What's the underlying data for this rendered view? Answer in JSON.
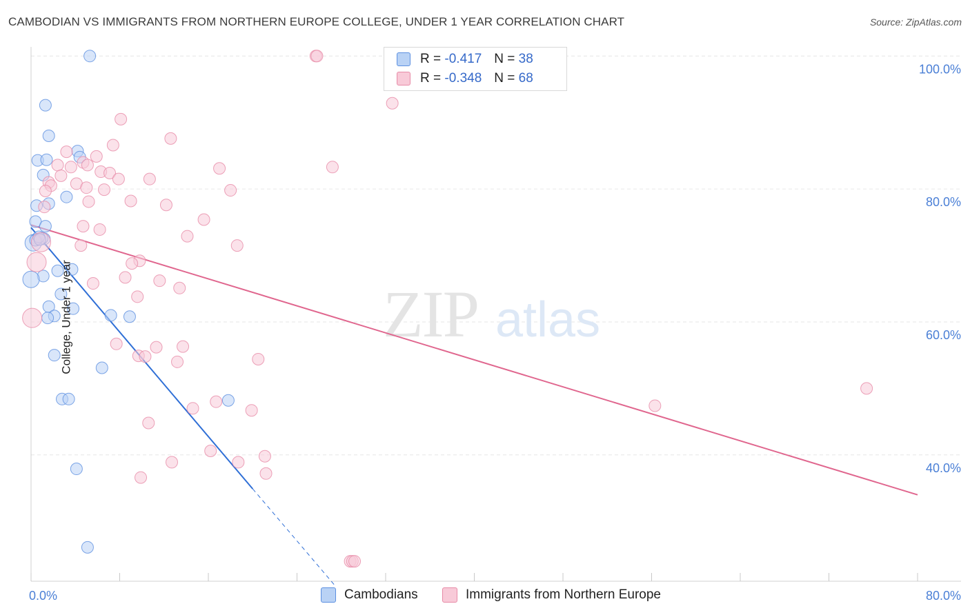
{
  "title": "CAMBODIAN VS IMMIGRANTS FROM NORTHERN EUROPE COLLEGE, UNDER 1 YEAR CORRELATION CHART",
  "source": "Source: ZipAtlas.com",
  "watermark": {
    "zip": "ZIP",
    "atlas": "atlas"
  },
  "colors": {
    "blue": "#5b8fe0",
    "blue_fill": "#b9d2f5",
    "blue_line": "#2f6fd6",
    "pink": "#e78aa6",
    "pink_fill": "#f8cad8",
    "pink_line": "#e0668e",
    "tick": "#4a7fd6",
    "grid": "#e6e6e6"
  },
  "legend": {
    "rows": [
      {
        "r_label": "R =",
        "r_value": "-0.417",
        "n_label": "N =",
        "n_value": "38",
        "series": "blue"
      },
      {
        "r_label": "R =",
        "r_value": "-0.348",
        "n_label": "N =",
        "n_value": "68",
        "series": "pink"
      }
    ]
  },
  "chart_data": {
    "type": "scatter",
    "title": "CAMBODIAN VS IMMIGRANTS FROM NORTHERN EUROPE COLLEGE, UNDER 1 YEAR CORRELATION CHART",
    "xlabel": "",
    "ylabel": "College, Under 1 year",
    "xlim": [
      0,
      80
    ],
    "ylim": [
      21,
      102
    ],
    "x_tick_labels": [
      {
        "value": 0,
        "label": "0.0%"
      },
      {
        "value": 80,
        "label": "80.0%"
      }
    ],
    "y_tick_labels": [
      {
        "value": 100,
        "label": "100.0%"
      },
      {
        "value": 80,
        "label": "80.0%"
      },
      {
        "value": 60,
        "label": "60.0%"
      },
      {
        "value": 40,
        "label": "40.0%"
      }
    ],
    "grid": true,
    "series": [
      {
        "name": "Cambodians",
        "color": "blue",
        "r": -0.417,
        "n": 38,
        "trend": {
          "x": [
            0,
            20
          ],
          "y": [
            74.2,
            34.9
          ],
          "dashed_to": [
            27.5,
            20.2
          ]
        },
        "points": [
          [
            5.3,
            100
          ],
          [
            1.3,
            92.6
          ],
          [
            1.6,
            88
          ],
          [
            0.6,
            84.3
          ],
          [
            1.4,
            84.4
          ],
          [
            4.2,
            85.7
          ],
          [
            4.4,
            84.8
          ],
          [
            1.1,
            82.1
          ],
          [
            3.2,
            78.8
          ],
          [
            0.5,
            77.5
          ],
          [
            1.6,
            77.8
          ],
          [
            0.4,
            75.1
          ],
          [
            1.3,
            74.4
          ],
          [
            0.5,
            72.5
          ],
          [
            1.2,
            72.5
          ],
          [
            1.0,
            72.6
          ],
          [
            0.2,
            71.9
          ],
          [
            3.7,
            67.9
          ],
          [
            1.1,
            66.9
          ],
          [
            2.4,
            67.7
          ],
          [
            0,
            66.4
          ],
          [
            2.7,
            64.2
          ],
          [
            1.6,
            62.3
          ],
          [
            3.8,
            62.0
          ],
          [
            2.1,
            60.9
          ],
          [
            1.5,
            60.6
          ],
          [
            7.2,
            61.0
          ],
          [
            8.9,
            60.8
          ],
          [
            2.1,
            55.0
          ],
          [
            6.4,
            53.1
          ],
          [
            2.8,
            48.4
          ],
          [
            3.4,
            48.4
          ],
          [
            17.8,
            48.2
          ],
          [
            4.1,
            37.9
          ],
          [
            5.1,
            26.1
          ],
          [
            0.4,
            72.3
          ],
          [
            0.7,
            72.8
          ],
          [
            0.8,
            72.4
          ]
        ]
      },
      {
        "name": "Immigrants from Northern Europe",
        "color": "pink",
        "r": -0.348,
        "n": 68,
        "trend": {
          "x": [
            0,
            80
          ],
          "y": [
            74.6,
            34.0
          ]
        },
        "points": [
          [
            25.7,
            100
          ],
          [
            25.8,
            100
          ],
          [
            32.6,
            92.9
          ],
          [
            8.1,
            90.5
          ],
          [
            12.6,
            87.6
          ],
          [
            7.4,
            86.6
          ],
          [
            3.2,
            85.6
          ],
          [
            5.9,
            84.9
          ],
          [
            2.4,
            83.6
          ],
          [
            4.7,
            84.0
          ],
          [
            5.1,
            83.6
          ],
          [
            27.2,
            83.3
          ],
          [
            17.0,
            83.1
          ],
          [
            3.6,
            83.3
          ],
          [
            6.3,
            82.6
          ],
          [
            7.1,
            82.4
          ],
          [
            2.7,
            82.0
          ],
          [
            7.9,
            81.5
          ],
          [
            10.7,
            81.5
          ],
          [
            1.6,
            81.0
          ],
          [
            4.1,
            80.8
          ],
          [
            1.8,
            80.5
          ],
          [
            5.0,
            80.2
          ],
          [
            6.6,
            79.9
          ],
          [
            1.3,
            79.7
          ],
          [
            18.0,
            79.8
          ],
          [
            9.0,
            78.2
          ],
          [
            5.2,
            78.1
          ],
          [
            12.2,
            77.6
          ],
          [
            1.2,
            77.3
          ],
          [
            15.6,
            75.4
          ],
          [
            4.7,
            74.4
          ],
          [
            6.2,
            73.9
          ],
          [
            14.1,
            72.9
          ],
          [
            0.9,
            72.0
          ],
          [
            4.5,
            71.5
          ],
          [
            18.6,
            71.5
          ],
          [
            9.8,
            69.2
          ],
          [
            9.1,
            68.8
          ],
          [
            8.5,
            66.7
          ],
          [
            11.6,
            66.2
          ],
          [
            5.6,
            65.8
          ],
          [
            13.4,
            65.1
          ],
          [
            9.6,
            63.8
          ],
          [
            0.5,
            69.0
          ],
          [
            0.1,
            60.6
          ],
          [
            7.7,
            56.7
          ],
          [
            11.3,
            56.2
          ],
          [
            13.7,
            56.3
          ],
          [
            9.7,
            54.9
          ],
          [
            10.3,
            54.8
          ],
          [
            20.5,
            54.4
          ],
          [
            13.2,
            54.0
          ],
          [
            75.4,
            50.0
          ],
          [
            14.6,
            47.0
          ],
          [
            16.7,
            48.0
          ],
          [
            19.9,
            46.7
          ],
          [
            56.3,
            47.4
          ],
          [
            10.6,
            44.8
          ],
          [
            16.2,
            40.6
          ],
          [
            21.1,
            39.8
          ],
          [
            12.7,
            38.9
          ],
          [
            18.7,
            38.9
          ],
          [
            21.2,
            37.2
          ],
          [
            9.9,
            36.6
          ],
          [
            28.8,
            24.0
          ],
          [
            29.0,
            24.0
          ],
          [
            29.2,
            24.0
          ]
        ]
      }
    ]
  },
  "bottom_legend": [
    {
      "label": "Cambodians",
      "series": "blue"
    },
    {
      "label": "Immigrants from Northern Europe",
      "series": "pink"
    }
  ]
}
